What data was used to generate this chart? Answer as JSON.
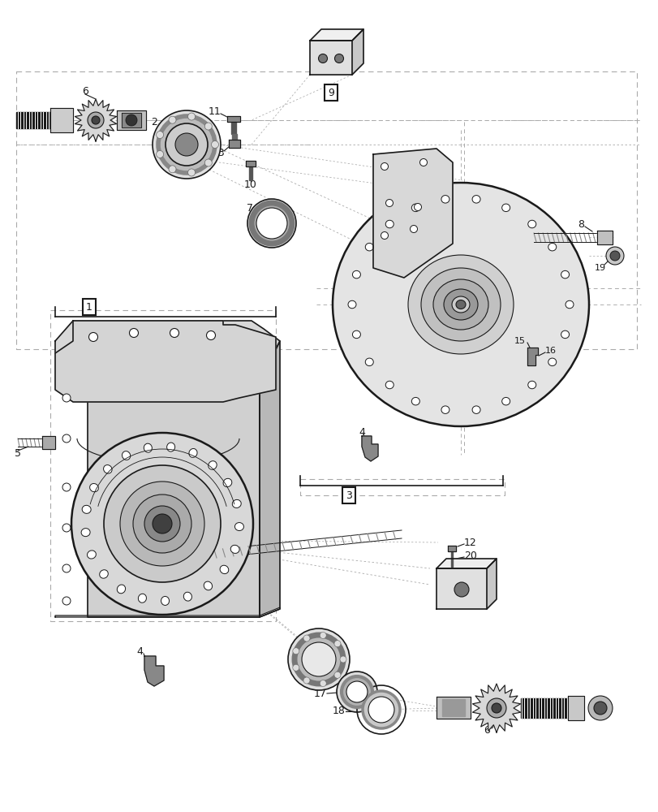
{
  "bg_color": "#ffffff",
  "line_color": "#1a1a1a",
  "figsize": [
    8.12,
    10.0
  ],
  "dpi": 100
}
